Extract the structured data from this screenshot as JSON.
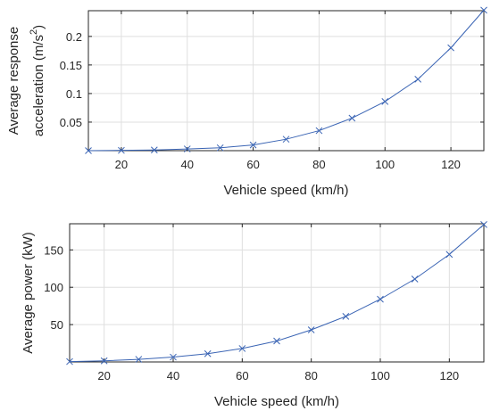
{
  "chart_data": [
    {
      "type": "line",
      "xlabel": "Vehicle speed (km/h)",
      "ylabel_lines": [
        "Average response",
        "acceleration (m/s"
      ],
      "ylabel_sup": "2",
      "ylabel_close": ")",
      "xlim": [
        10,
        130
      ],
      "ylim": [
        0,
        0.245
      ],
      "xticks": [
        20,
        40,
        60,
        80,
        100,
        120
      ],
      "yticks": [
        0.05,
        0.1,
        0.15,
        0.2
      ],
      "ytick_labels": [
        "0.05",
        "0.1",
        "0.15",
        "0.2"
      ],
      "grid": true,
      "marker": "x",
      "color": "#3a64b4",
      "x": [
        10,
        20,
        30,
        40,
        50,
        60,
        70,
        80,
        90,
        100,
        110,
        120,
        130
      ],
      "y": [
        0.0,
        0.0005,
        0.0012,
        0.003,
        0.005,
        0.01,
        0.02,
        0.035,
        0.057,
        0.086,
        0.125,
        0.18,
        0.246
      ]
    },
    {
      "type": "line",
      "xlabel": "Vehicle speed (km/h)",
      "ylabel_lines": [
        "Average power (kW)"
      ],
      "xlim": [
        10,
        130
      ],
      "ylim": [
        0,
        185
      ],
      "xticks": [
        20,
        40,
        60,
        80,
        100,
        120
      ],
      "yticks": [
        50,
        100,
        150
      ],
      "ytick_labels": [
        "50",
        "100",
        "150"
      ],
      "grid": true,
      "marker": "x",
      "color": "#3a64b4",
      "x": [
        10,
        20,
        30,
        40,
        50,
        60,
        70,
        80,
        90,
        100,
        110,
        120,
        130
      ],
      "y": [
        0.5,
        1.5,
        3.5,
        6.5,
        11,
        18,
        28,
        43,
        61,
        84,
        111,
        144,
        184
      ]
    }
  ]
}
